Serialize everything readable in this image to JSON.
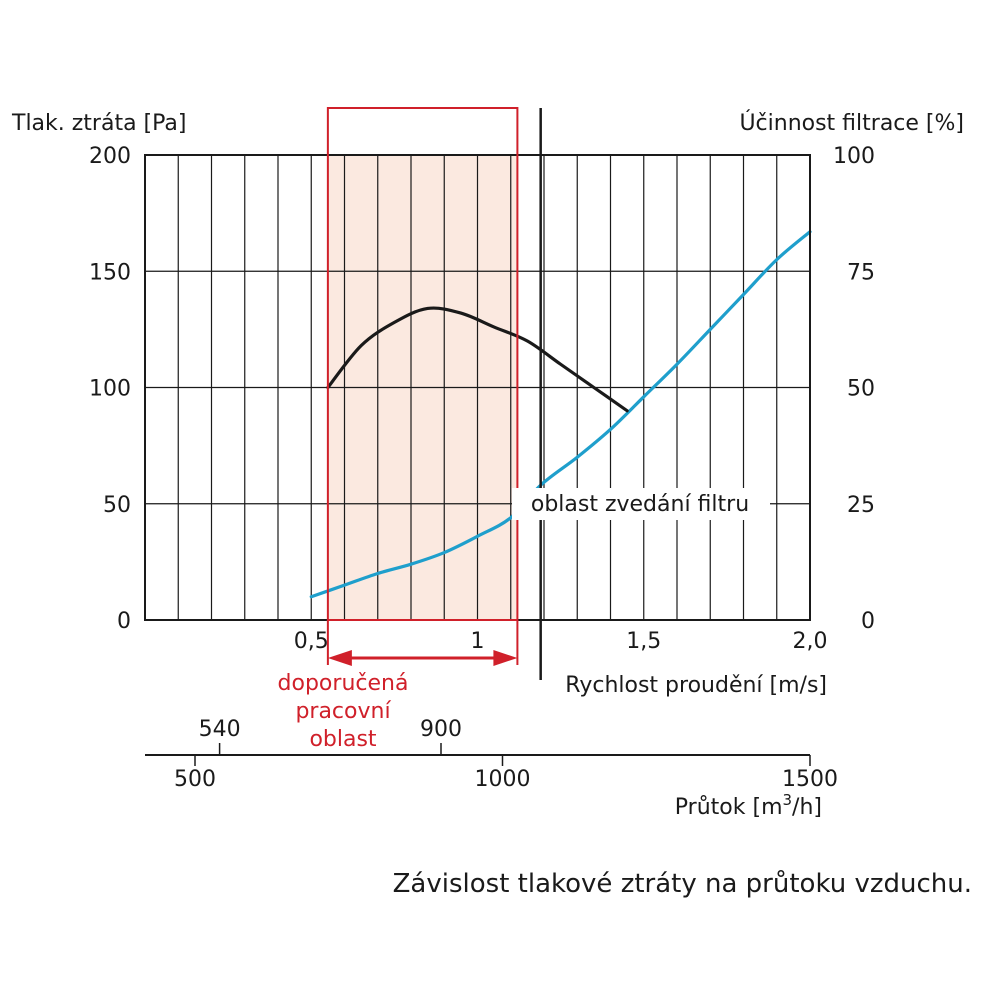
{
  "chart_data": {
    "type": "line",
    "left_axis_label": "Tlak. ztráta [Pa]",
    "right_axis_label": "Účinnost filtrace [%]",
    "x_axis_label": "Rychlost proudění [m/s]",
    "flow_axis_label": "Průtok [m³/h]",
    "flow_axis_label_base": "Průtok [m",
    "flow_axis_label_sup": "3",
    "flow_axis_label_end": "/h]",
    "caption": "Závislost tlakové ztráty na průtoku vzduchu.",
    "lift_label": "oblast zvedání filtru",
    "recommended_label": [
      "doporučená",
      "pracovní",
      "oblast"
    ],
    "left_ticks": [
      {
        "value": 0,
        "label": "0"
      },
      {
        "value": 50,
        "label": "50"
      },
      {
        "value": 100,
        "label": "100"
      },
      {
        "value": 150,
        "label": "150"
      },
      {
        "value": 200,
        "label": "200"
      }
    ],
    "right_ticks": [
      {
        "value": 0,
        "label": "0"
      },
      {
        "value": 25,
        "label": "25"
      },
      {
        "value": 50,
        "label": "50"
      },
      {
        "value": 75,
        "label": "75"
      },
      {
        "value": 100,
        "label": "100"
      }
    ],
    "x_ticks": [
      {
        "value": 0.5,
        "label": "0,5"
      },
      {
        "value": 1.0,
        "label": "1"
      },
      {
        "value": 1.5,
        "label": "1,5"
      },
      {
        "value": 2.0,
        "label": "2,0"
      }
    ],
    "flow_ticks_top": [
      {
        "value": 540,
        "label": "540"
      },
      {
        "value": 900,
        "label": "900"
      }
    ],
    "flow_ticks_bottom": [
      {
        "value": 500,
        "label": "500"
      },
      {
        "value": 1000,
        "label": "1000"
      },
      {
        "value": 1500,
        "label": "1500"
      }
    ],
    "xlim": [
      0.0,
      2.0
    ],
    "ylim_left": [
      0,
      200
    ],
    "ylim_right": [
      0,
      100
    ],
    "recommended_range_velocity": [
      0.55,
      1.12
    ],
    "lift_threshold_velocity": 1.19,
    "series": [
      {
        "axis": "left",
        "color": "#1f9fcc",
        "x": [
          0.5,
          0.6,
          0.7,
          0.8,
          0.9,
          1.0,
          1.1,
          1.19,
          1.3,
          1.4,
          1.5,
          1.6,
          1.7,
          1.8,
          1.9,
          2.0
        ],
        "y": [
          10,
          15,
          20,
          24,
          29,
          36,
          44,
          58,
          70,
          82,
          96,
          110,
          125,
          140,
          155,
          167
        ]
      },
      {
        "axis": "right",
        "color": "#1a1a1a",
        "x": [
          0.55,
          0.65,
          0.75,
          0.85,
          0.95,
          1.05,
          1.15,
          1.25,
          1.35,
          1.45
        ],
        "y": [
          50,
          59,
          64,
          67,
          66,
          63,
          60,
          55,
          50,
          45
        ]
      }
    ],
    "grid": true,
    "colors": {
      "recommended_fill": "#fbe9e0",
      "recommended_stroke": "#d0202a",
      "water_curve": "#1f9fcc",
      "efficiency_curve": "#1a1a1a"
    }
  }
}
